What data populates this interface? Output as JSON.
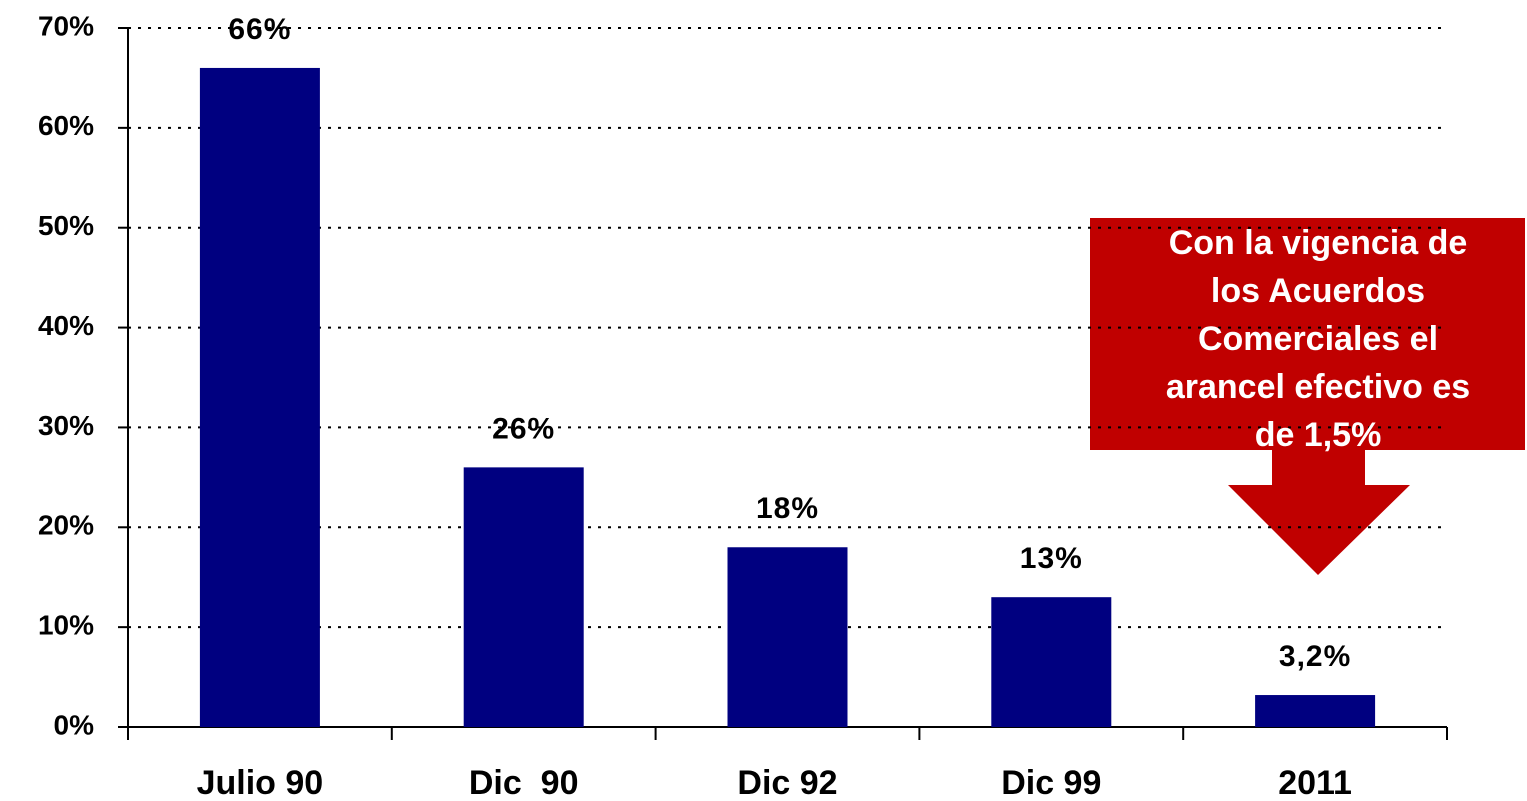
{
  "chart_data": {
    "type": "bar",
    "categories": [
      "Julio 90",
      "Dic  90",
      "Dic 92",
      "Dic 99",
      "2011"
    ],
    "values": [
      66,
      26,
      18,
      13,
      3.2
    ],
    "value_labels": [
      "66%",
      "26%",
      "18%",
      "13%",
      "3,2%"
    ],
    "color": "#000080",
    "ylim": [
      0,
      70
    ],
    "yticks": [
      {
        "value": 0,
        "label": "0%"
      },
      {
        "value": 10,
        "label": "10%"
      },
      {
        "value": 20,
        "label": "20%"
      },
      {
        "value": 30,
        "label": "30%"
      },
      {
        "value": 40,
        "label": "40%"
      },
      {
        "value": 50,
        "label": "50%"
      },
      {
        "value": 60,
        "label": "60%"
      },
      {
        "value": 70,
        "label": "70%"
      }
    ],
    "grid": true,
    "annotation": [
      "Con la vigencia de",
      "los Acuerdos",
      "Comerciales el",
      "arancel efectivo es",
      "de 1,5%"
    ]
  }
}
